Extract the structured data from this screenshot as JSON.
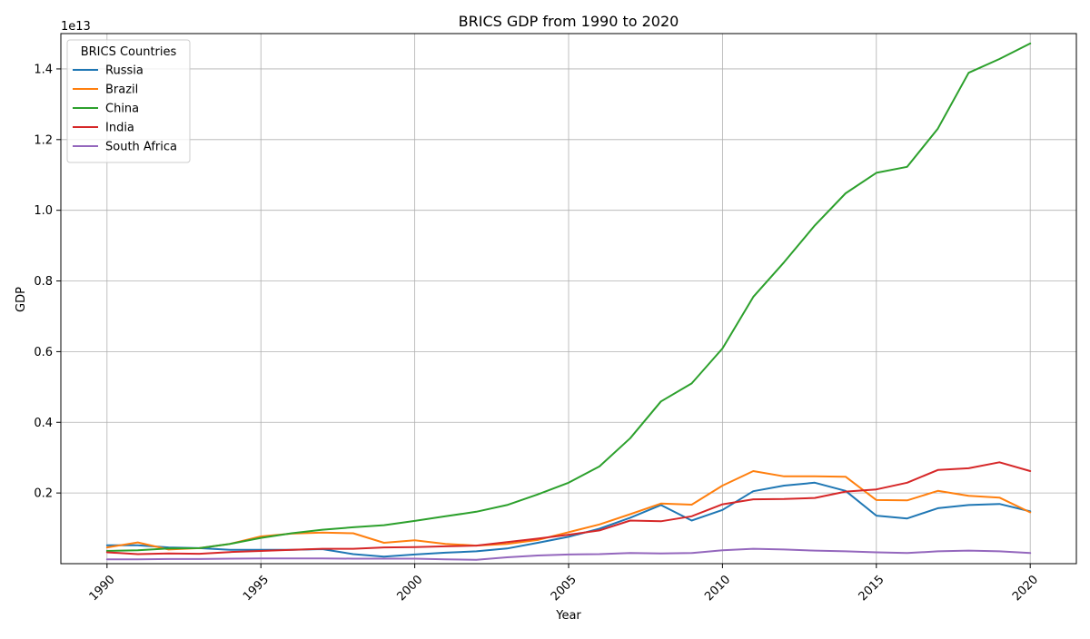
{
  "chart_data": {
    "type": "line",
    "title": "BRICS GDP from 1990 to 2020",
    "xlabel": "Year",
    "ylabel": "GDP",
    "y_offset_label": "1e13",
    "xlim": [
      1988.5,
      2021.5
    ],
    "ylim": [
      0,
      15000000000000.0
    ],
    "x_ticks": [
      1990,
      1995,
      2000,
      2005,
      2010,
      2015,
      2020
    ],
    "x_tick_labels": [
      "1990",
      "1995",
      "2000",
      "2005",
      "2010",
      "2015",
      "2020"
    ],
    "x_tick_rotation": 45,
    "y_ticks": [
      2000000000000.0,
      4000000000000.0,
      6000000000000.0,
      8000000000000.0,
      10000000000000.0,
      12000000000000.0,
      14000000000000.0
    ],
    "y_tick_labels": [
      "0.2",
      "0.4",
      "0.6",
      "0.8",
      "1.0",
      "1.2",
      "1.4"
    ],
    "grid": true,
    "legend": {
      "title": "BRICS Countries",
      "placement": "upper-left"
    },
    "x": [
      1990,
      1991,
      1992,
      1993,
      1994,
      1995,
      1996,
      1997,
      1998,
      1999,
      2000,
      2001,
      2002,
      2003,
      2004,
      2005,
      2006,
      2007,
      2008,
      2009,
      2010,
      2011,
      2012,
      2013,
      2014,
      2015,
      2016,
      2017,
      2018,
      2019,
      2020
    ],
    "series": [
      {
        "name": "Russia",
        "color": "#1f77b4",
        "values": [
          520000000000.0,
          520000000000.0,
          460000000000.0,
          440000000000.0,
          390000000000.0,
          390000000000.0,
          390000000000.0,
          410000000000.0,
          270000000000.0,
          200000000000.0,
          260000000000.0,
          310000000000.0,
          350000000000.0,
          430000000000.0,
          590000000000.0,
          760000000000.0,
          990000000000.0,
          1300000000000.0,
          1660000000000.0,
          1220000000000.0,
          1520000000000.0,
          2050000000000.0,
          2210000000000.0,
          2290000000000.0,
          2060000000000.0,
          1360000000000.0,
          1280000000000.0,
          1570000000000.0,
          1660000000000.0,
          1690000000000.0,
          1480000000000.0
        ]
      },
      {
        "name": "Brazil",
        "color": "#ff7f0e",
        "values": [
          460000000000.0,
          600000000000.0,
          400000000000.0,
          440000000000.0,
          560000000000.0,
          770000000000.0,
          850000000000.0,
          880000000000.0,
          860000000000.0,
          590000000000.0,
          660000000000.0,
          560000000000.0,
          510000000000.0,
          560000000000.0,
          670000000000.0,
          890000000000.0,
          1110000000000.0,
          1400000000000.0,
          1700000000000.0,
          1670000000000.0,
          2210000000000.0,
          2620000000000.0,
          2470000000000.0,
          2470000000000.0,
          2460000000000.0,
          1800000000000.0,
          1790000000000.0,
          2060000000000.0,
          1920000000000.0,
          1870000000000.0,
          1450000000000.0
        ]
      },
      {
        "name": "China",
        "color": "#2ca02c",
        "values": [
          360000000000.0,
          380000000000.0,
          430000000000.0,
          440000000000.0,
          560000000000.0,
          730000000000.0,
          860000000000.0,
          960000000000.0,
          1030000000000.0,
          1090000000000.0,
          1210000000000.0,
          1340000000000.0,
          1470000000000.0,
          1660000000000.0,
          1960000000000.0,
          2290000000000.0,
          2750000000000.0,
          3550000000000.0,
          4590000000000.0,
          5100000000000.0,
          6090000000000.0,
          7550000000000.0,
          8530000000000.0,
          9570000000000.0,
          10480000000000.0,
          11060000000000.0,
          11230000000000.0,
          12310000000000.0,
          13890000000000.0,
          14280000000000.0,
          14720000000000.0
        ]
      },
      {
        "name": "India",
        "color": "#d62728",
        "values": [
          320000000000.0,
          270000000000.0,
          290000000000.0,
          280000000000.0,
          330000000000.0,
          360000000000.0,
          390000000000.0,
          420000000000.0,
          420000000000.0,
          460000000000.0,
          470000000000.0,
          490000000000.0,
          510000000000.0,
          610000000000.0,
          710000000000.0,
          820000000000.0,
          940000000000.0,
          1220000000000.0,
          1200000000000.0,
          1340000000000.0,
          1680000000000.0,
          1820000000000.0,
          1830000000000.0,
          1860000000000.0,
          2040000000000.0,
          2100000000000.0,
          2290000000000.0,
          2650000000000.0,
          2700000000000.0,
          2870000000000.0,
          2620000000000.0
        ]
      },
      {
        "name": "South Africa",
        "color": "#9467bd",
        "values": [
          120000000000.0,
          120000000000.0,
          130000000000.0,
          130000000000.0,
          140000000000.0,
          150000000000.0,
          150000000000.0,
          150000000000.0,
          140000000000.0,
          140000000000.0,
          140000000000.0,
          120000000000.0,
          110000000000.0,
          180000000000.0,
          230000000000.0,
          260000000000.0,
          270000000000.0,
          300000000000.0,
          290000000000.0,
          300000000000.0,
          380000000000.0,
          420000000000.0,
          400000000000.0,
          370000000000.0,
          350000000000.0,
          320000000000.0,
          300000000000.0,
          350000000000.0,
          370000000000.0,
          350000000000.0,
          300000000000.0
        ]
      }
    ]
  }
}
